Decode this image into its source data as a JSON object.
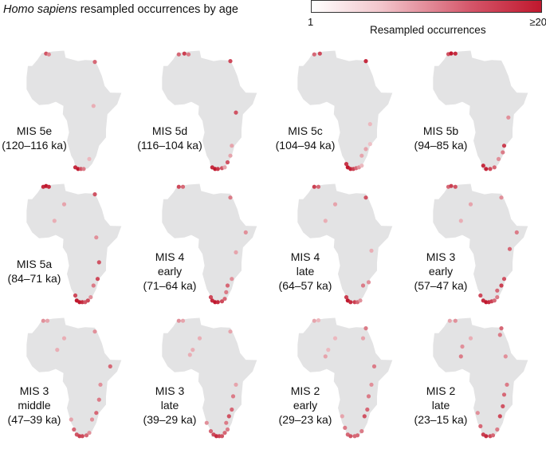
{
  "title_italic": "Homo sapiens",
  "title_rest": " resampled occurrences by age",
  "legend": {
    "min_label": "1",
    "max_label": "≥20",
    "title": "Resampled occurrences",
    "color_low": "#ffffff",
    "color_high": "#c0182e"
  },
  "map_fill": "#e3e3e4",
  "panels": [
    {
      "lines": [
        "MIS 5e",
        "(120–116 ka)"
      ],
      "points": [
        [
          -3,
          35.5,
          14
        ],
        [
          -1,
          35,
          9
        ],
        [
          32,
          30.5,
          12
        ],
        [
          31,
          4,
          5
        ],
        [
          18,
          -33,
          18
        ],
        [
          20,
          -34,
          20
        ],
        [
          22,
          -34,
          14
        ],
        [
          24,
          -34,
          10
        ],
        [
          28,
          -28,
          4
        ]
      ]
    },
    {
      "lines": [
        "MIS 5d",
        "(116–104 ka)"
      ],
      "points": [
        [
          -5,
          35,
          12
        ],
        [
          -1,
          35.5,
          16
        ],
        [
          2,
          35,
          10
        ],
        [
          32,
          31,
          15
        ],
        [
          36,
          0,
          14
        ],
        [
          33,
          -20,
          6
        ],
        [
          32,
          -26,
          6
        ],
        [
          30,
          -30,
          14
        ],
        [
          19,
          -33,
          18
        ],
        [
          21,
          -34,
          20
        ],
        [
          23,
          -34,
          17
        ],
        [
          26,
          -33.5,
          14
        ],
        [
          28,
          -33,
          6
        ]
      ]
    },
    {
      "lines": [
        "MIS 5c",
        "(104–94 ka)"
      ],
      "points": [
        [
          -5,
          35,
          12
        ],
        [
          -1,
          35.5,
          15
        ],
        [
          32,
          31,
          18
        ],
        [
          35,
          -7,
          4
        ],
        [
          32,
          -22,
          6
        ],
        [
          35,
          -19,
          3
        ],
        [
          29,
          -26,
          6
        ],
        [
          18,
          -31,
          17
        ],
        [
          19,
          -33,
          20
        ],
        [
          21,
          -34,
          19
        ],
        [
          23,
          -34,
          16
        ],
        [
          25,
          -33.5,
          12
        ],
        [
          27,
          -33,
          8
        ],
        [
          29,
          -32,
          4
        ]
      ]
    },
    {
      "lines": [
        "MIS 5b",
        "(94–85 ka)"
      ],
      "points": [
        [
          -6,
          35.2,
          14
        ],
        [
          -4,
          35.6,
          20
        ],
        [
          -1,
          35.5,
          18
        ],
        [
          37,
          -3,
          8
        ],
        [
          34,
          -20,
          16
        ],
        [
          33,
          -24,
          10
        ],
        [
          30,
          -28,
          8
        ],
        [
          19,
          -32,
          18
        ],
        [
          21,
          -34,
          19
        ],
        [
          24,
          -34,
          15
        ],
        [
          27,
          -33,
          12
        ]
      ]
    },
    {
      "lines": [
        "MIS 5a",
        "(84–71 ka)"
      ],
      "points": [
        [
          -5,
          35.5,
          18
        ],
        [
          -3,
          36,
          20
        ],
        [
          -1,
          35.5,
          18
        ],
        [
          32,
          31,
          14
        ],
        [
          10,
          25,
          6
        ],
        [
          3,
          15,
          5
        ],
        [
          33,
          5,
          8
        ],
        [
          35,
          -10,
          14
        ],
        [
          34,
          -20,
          15
        ],
        [
          31,
          -24,
          10
        ],
        [
          18,
          -30,
          15
        ],
        [
          19,
          -33,
          20
        ],
        [
          21,
          -34,
          20
        ],
        [
          23,
          -34,
          18
        ],
        [
          25,
          -34,
          14
        ],
        [
          27,
          -33,
          15
        ],
        [
          29,
          -31,
          8
        ]
      ]
    },
    {
      "lines": [
        "MIS 4",
        "early",
        "(71–64 ka)"
      ],
      "points": [
        [
          -5,
          35.5,
          15
        ],
        [
          -2,
          35.5,
          12
        ],
        [
          32,
          29,
          10
        ],
        [
          43,
          8,
          8
        ],
        [
          36,
          -4,
          6
        ],
        [
          33,
          -20,
          8
        ],
        [
          30,
          -24,
          12
        ],
        [
          29,
          -28,
          10
        ],
        [
          18,
          -31,
          15
        ],
        [
          19,
          -33,
          18
        ],
        [
          21,
          -34,
          20
        ],
        [
          23,
          -34,
          18
        ],
        [
          26,
          -33.5,
          15
        ],
        [
          28,
          -32,
          12
        ]
      ]
    },
    {
      "lines": [
        "MIS 4",
        "late",
        "(64–57 ka)"
      ],
      "points": [
        [
          -5,
          35.5,
          16
        ],
        [
          -2,
          35.5,
          12
        ],
        [
          32,
          29,
          14
        ],
        [
          10,
          25,
          6
        ],
        [
          3,
          15,
          5
        ],
        [
          36,
          -3,
          5
        ],
        [
          30,
          -24,
          10
        ],
        [
          34,
          -22,
          8
        ],
        [
          18,
          -31,
          16
        ],
        [
          19,
          -33,
          20
        ],
        [
          21,
          -34,
          18
        ],
        [
          24,
          -34,
          16
        ],
        [
          26,
          -34,
          12
        ],
        [
          28,
          -33,
          8
        ]
      ]
    },
    {
      "lines": [
        "MIS 3",
        "early",
        "(57–47 ka)"
      ],
      "points": [
        [
          -6,
          35.5,
          12
        ],
        [
          -4,
          36,
          16
        ],
        [
          -1,
          35.5,
          14
        ],
        [
          32,
          29,
          8
        ],
        [
          10,
          25,
          6
        ],
        [
          3,
          15,
          5
        ],
        [
          43,
          8,
          10
        ],
        [
          38,
          -2,
          12
        ],
        [
          34,
          -20,
          14
        ],
        [
          32,
          -24,
          16
        ],
        [
          29,
          -27,
          12
        ],
        [
          17,
          -30,
          15
        ],
        [
          19,
          -33,
          18
        ],
        [
          21,
          -34,
          20
        ],
        [
          23,
          -34,
          18
        ],
        [
          25,
          -33.5,
          16
        ],
        [
          27,
          -33,
          12
        ],
        [
          29,
          -31,
          10
        ]
      ]
    },
    {
      "lines": [
        "MIS 3",
        "middle",
        "(47–39 ka)"
      ],
      "points": [
        [
          -5,
          35.5,
          8
        ],
        [
          -2,
          35.5,
          6
        ],
        [
          32,
          29,
          8
        ],
        [
          10,
          25,
          5
        ],
        [
          5,
          18,
          5
        ],
        [
          43,
          8,
          12
        ],
        [
          36,
          -3,
          8
        ],
        [
          35,
          -12,
          10
        ],
        [
          33,
          -20,
          12
        ],
        [
          30,
          -24,
          8
        ],
        [
          15,
          -24,
          6
        ],
        [
          17,
          -30,
          12
        ],
        [
          19,
          -33,
          14
        ],
        [
          21,
          -34,
          16
        ],
        [
          23,
          -34,
          15
        ],
        [
          26,
          -33.5,
          12
        ],
        [
          28,
          -32,
          8
        ]
      ]
    },
    {
      "lines": [
        "MIS 3",
        "late",
        "(39–29 ka)"
      ],
      "points": [
        [
          -5,
          35.5,
          8
        ],
        [
          -2,
          35.5,
          6
        ],
        [
          32,
          29,
          6
        ],
        [
          10,
          25,
          5
        ],
        [
          5,
          18,
          5
        ],
        [
          3,
          15,
          5
        ],
        [
          36,
          -3,
          6
        ],
        [
          34,
          -10,
          10
        ],
        [
          33,
          -18,
          12
        ],
        [
          31,
          -22,
          14
        ],
        [
          29,
          -26,
          10
        ],
        [
          15,
          -26,
          8
        ],
        [
          18,
          -31,
          12
        ],
        [
          20,
          -33,
          15
        ],
        [
          22,
          -34,
          18
        ],
        [
          24,
          -34,
          16
        ],
        [
          26,
          -34,
          14
        ],
        [
          28,
          -32,
          12
        ],
        [
          30,
          -30,
          10
        ]
      ]
    },
    {
      "lines": [
        "MIS 2",
        "early",
        "(29–23 ka)"
      ],
      "points": [
        [
          -5,
          35.5,
          6
        ],
        [
          -2,
          35.8,
          4
        ],
        [
          32,
          31,
          10
        ],
        [
          30,
          25,
          6
        ],
        [
          10,
          25,
          4
        ],
        [
          5,
          18,
          4
        ],
        [
          3,
          14,
          6
        ],
        [
          38,
          8,
          10
        ],
        [
          36,
          -3,
          8
        ],
        [
          34,
          -10,
          10
        ],
        [
          33,
          -18,
          12
        ],
        [
          31,
          -22,
          14
        ],
        [
          15,
          -22,
          6
        ],
        [
          17,
          -29,
          10
        ],
        [
          19,
          -33,
          12
        ],
        [
          21,
          -34,
          14
        ],
        [
          24,
          -34,
          12
        ],
        [
          26,
          -33.5,
          12
        ],
        [
          29,
          -31,
          10
        ]
      ]
    },
    {
      "lines": [
        "MIS 2",
        "late",
        "(23–15 ka)"
      ],
      "points": [
        [
          -5,
          35.5,
          6
        ],
        [
          -1,
          35.5,
          8
        ],
        [
          32,
          31,
          12
        ],
        [
          31,
          27,
          10
        ],
        [
          10,
          25,
          5
        ],
        [
          4,
          20,
          8
        ],
        [
          3,
          14,
          10
        ],
        [
          35,
          14,
          8
        ],
        [
          36,
          -3,
          10
        ],
        [
          34,
          -9,
          12
        ],
        [
          33,
          -16,
          14
        ],
        [
          31,
          -22,
          15
        ],
        [
          15,
          -20,
          8
        ],
        [
          17,
          -28,
          12
        ],
        [
          19,
          -33,
          16
        ],
        [
          21,
          -34,
          18
        ],
        [
          24,
          -34,
          15
        ],
        [
          26,
          -33.5,
          12
        ],
        [
          29,
          -30,
          10
        ]
      ]
    }
  ]
}
